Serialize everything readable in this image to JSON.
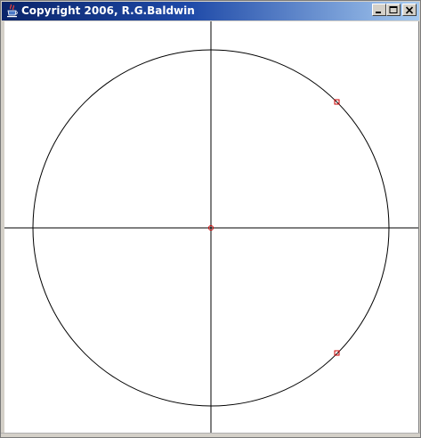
{
  "window": {
    "title": "Copyright 2006, R.G.Baldwin"
  },
  "icons": {
    "app": "java-cup-icon",
    "minimize": "minimize-icon",
    "maximize": "maximize-icon",
    "close": "close-icon"
  },
  "drawing": {
    "circle_color": "#000000",
    "axis_color": "#000000",
    "marker_color": "#cc0000",
    "background": "#ffffff"
  }
}
